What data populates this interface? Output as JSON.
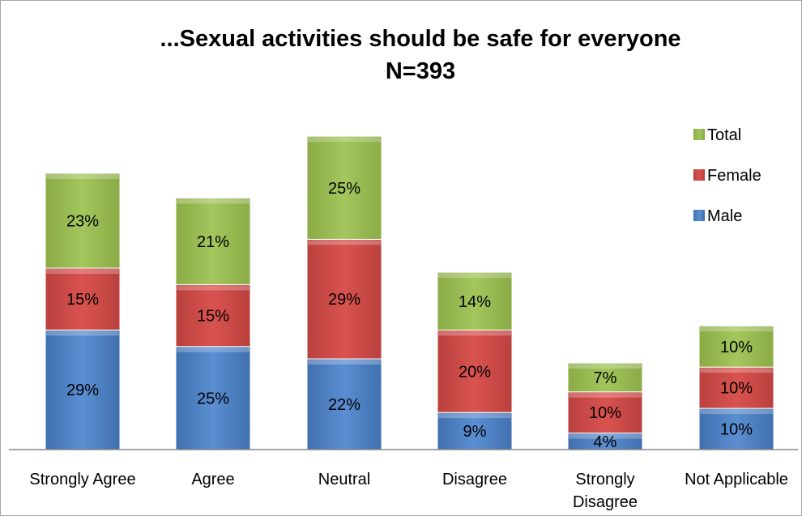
{
  "chart_data": {
    "type": "bar",
    "stacked": true,
    "title": "...Sexual activities should be safe for everyone",
    "subtitle": "N=393",
    "xlabel": "",
    "ylabel": "",
    "categories": [
      "Strongly Agree",
      "Agree",
      "Neutral",
      "Disagree",
      "Strongly Disagree",
      "Not Applicable"
    ],
    "series": [
      {
        "name": "Male",
        "color": "#4f81bd",
        "values": [
          29,
          25,
          22,
          9,
          4,
          10
        ],
        "labels": [
          "29%",
          "25%",
          "22%",
          "9%",
          "4%",
          "10%"
        ]
      },
      {
        "name": "Female",
        "color": "#c0504d",
        "values": [
          15,
          15,
          29,
          20,
          10,
          10
        ],
        "labels": [
          "15%",
          "15%",
          "29%",
          "20%",
          "10%",
          "10%"
        ]
      },
      {
        "name": "Total",
        "color": "#9bbb59",
        "values": [
          23,
          21,
          25,
          14,
          7,
          10
        ],
        "labels": [
          "23%",
          "21%",
          "25%",
          "14%",
          "7%",
          "10%"
        ]
      }
    ],
    "legend": {
      "position": "right",
      "order": [
        "Total",
        "Female",
        "Male"
      ]
    },
    "grid": false,
    "ylim": [
      0,
      80
    ]
  }
}
